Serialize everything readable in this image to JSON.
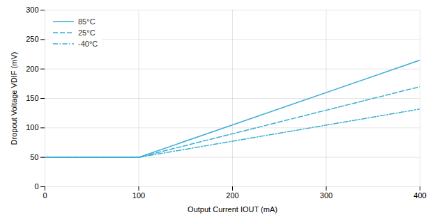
{
  "chart_data": {
    "type": "line",
    "xlabel": "Output Current IOUT (mA)",
    "ylabel": "Dropout Voltage VDIF (mV)",
    "x": [
      0,
      100,
      400
    ],
    "series": [
      {
        "name": "85°C",
        "color": "#3caed4",
        "line_style": "solid",
        "values": [
          50,
          50,
          215
        ]
      },
      {
        "name": "25°C",
        "color": "#3caed4",
        "line_style": "dashed",
        "values": [
          50,
          50,
          170
        ]
      },
      {
        "name": "-40°C",
        "color": "#3caed4",
        "line_style": "dashdot",
        "values": [
          50,
          50,
          132
        ]
      }
    ],
    "xlim": [
      0,
      400
    ],
    "ylim": [
      0,
      300
    ],
    "xticks": [
      0,
      100,
      200,
      300,
      400
    ],
    "yticks": [
      0,
      50,
      100,
      150,
      200,
      250,
      300
    ],
    "grid": true,
    "legend": "upper left"
  }
}
